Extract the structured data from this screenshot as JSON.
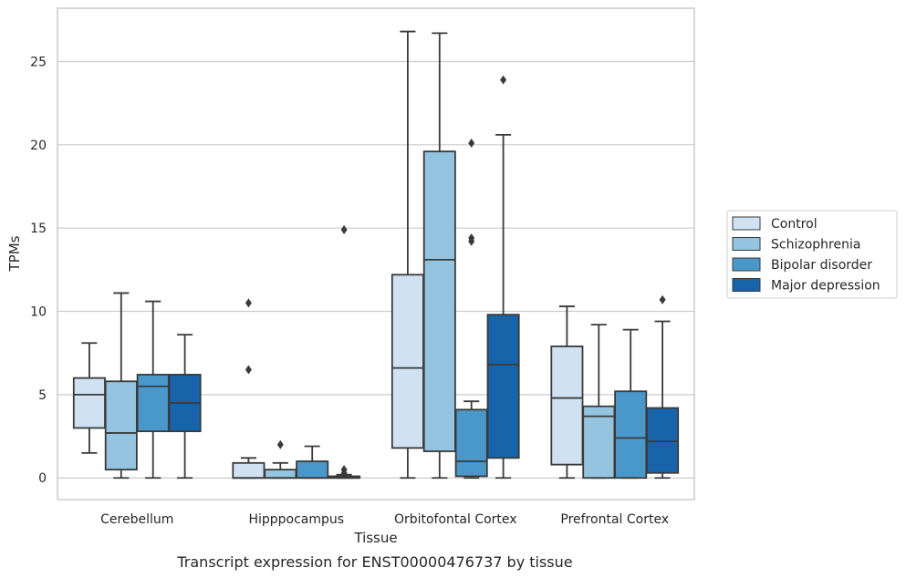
{
  "caption": "Transcript expression for ENST00000476737 by tissue",
  "chart_data": {
    "type": "box",
    "xlabel": "Tissue",
    "ylabel": "TPMs",
    "ylim": [
      -1.3,
      28.2
    ],
    "yticks": [
      0,
      5,
      10,
      15,
      20,
      25
    ],
    "grid": true,
    "legend_placement": "right",
    "categories": [
      "Cerebellum",
      "Hipppocampus",
      "Orbitofontal Cortex",
      "Prefrontal Cortex"
    ],
    "series": [
      {
        "name": "Control",
        "color": "#d0e1f2",
        "boxes": [
          {
            "whislo": 1.5,
            "q1": 3.0,
            "med": 5.0,
            "q3": 6.0,
            "whishi": 8.1,
            "fliers": []
          },
          {
            "whislo": 0.0,
            "q1": 0.0,
            "med": 0.0,
            "q3": 0.9,
            "whishi": 1.2,
            "fliers": [
              6.5,
              10.5
            ]
          },
          {
            "whislo": 0.0,
            "q1": 1.8,
            "med": 6.6,
            "q3": 12.2,
            "whishi": 26.8,
            "fliers": []
          },
          {
            "whislo": 0.0,
            "q1": 0.8,
            "med": 4.8,
            "q3": 7.9,
            "whishi": 10.3,
            "fliers": []
          }
        ]
      },
      {
        "name": "Schizophrenia",
        "color": "#94c4df",
        "boxes": [
          {
            "whislo": 0.0,
            "q1": 0.5,
            "med": 2.7,
            "q3": 5.8,
            "whishi": 11.1,
            "fliers": []
          },
          {
            "whislo": 0.0,
            "q1": 0.0,
            "med": 0.0,
            "q3": 0.5,
            "whishi": 0.9,
            "fliers": [
              2.0
            ]
          },
          {
            "whislo": 0.0,
            "q1": 1.6,
            "med": 13.1,
            "q3": 19.6,
            "whishi": 26.7,
            "fliers": []
          },
          {
            "whislo": 0.0,
            "q1": 0.0,
            "med": 3.7,
            "q3": 4.3,
            "whishi": 9.2,
            "fliers": []
          }
        ]
      },
      {
        "name": "Bipolar disorder",
        "color": "#4a98c9",
        "boxes": [
          {
            "whislo": 0.0,
            "q1": 2.8,
            "med": 5.5,
            "q3": 6.2,
            "whishi": 10.6,
            "fliers": []
          },
          {
            "whislo": 0.0,
            "q1": 0.0,
            "med": 0.0,
            "q3": 1.0,
            "whishi": 1.9,
            "fliers": []
          },
          {
            "whislo": 0.0,
            "q1": 0.1,
            "med": 1.0,
            "q3": 4.1,
            "whishi": 4.6,
            "fliers": [
              14.2,
              14.4,
              20.1
            ]
          },
          {
            "whislo": 0.0,
            "q1": 0.0,
            "med": 2.4,
            "q3": 5.2,
            "whishi": 8.9,
            "fliers": []
          }
        ]
      },
      {
        "name": "Major depression",
        "color": "#1764ab",
        "boxes": [
          {
            "whislo": 0.0,
            "q1": 2.8,
            "med": 4.5,
            "q3": 6.2,
            "whishi": 8.6,
            "fliers": []
          },
          {
            "whislo": 0.0,
            "q1": 0.0,
            "med": 0.0,
            "q3": 0.1,
            "whishi": 0.2,
            "fliers": [
              0.3,
              0.5,
              14.9
            ]
          },
          {
            "whislo": 0.0,
            "q1": 1.2,
            "med": 6.8,
            "q3": 9.8,
            "whishi": 20.6,
            "fliers": [
              23.9
            ]
          },
          {
            "whislo": 0.0,
            "q1": 0.3,
            "med": 2.2,
            "q3": 4.2,
            "whishi": 9.4,
            "fliers": [
              10.7
            ]
          }
        ]
      }
    ]
  }
}
